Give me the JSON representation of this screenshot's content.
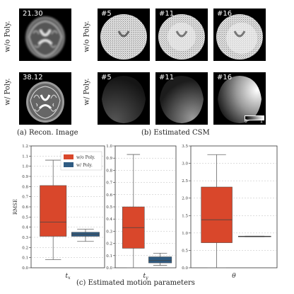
{
  "row_labels": {
    "without": "w/o Poly.",
    "with": "w/ Poly."
  },
  "recon": {
    "without_value": "21.30",
    "with_value": "38.12"
  },
  "csm": {
    "coils": [
      "#5",
      "#11",
      "#16"
    ],
    "colorbar_min": "0",
    "colorbar_max": "1"
  },
  "captions": {
    "a": "(a) Recon. Image",
    "b": "(b) Estimated CSM",
    "c": "(c) Estimated motion parameters"
  },
  "colors": {
    "without_poly": "#d9472b",
    "with_poly": "#2f5b82"
  },
  "chart_data": [
    {
      "type": "box",
      "xlabel": "t_x",
      "ylabel": "RMSE",
      "ylim": [
        0,
        1.2
      ],
      "yticks": [
        "0.0",
        "0.2",
        "0.4",
        "0.6",
        "0.8",
        "1.0",
        "1.2"
      ],
      "legend": {
        "position": "top-right",
        "entries": [
          "w/o Poly.",
          "w/ Poly."
        ]
      },
      "series": [
        {
          "name": "w/o Poly.",
          "min": 0.08,
          "q1": 0.31,
          "median": 0.45,
          "q3": 0.81,
          "max": 1.06
        },
        {
          "name": "w/ Poly.",
          "min": 0.26,
          "q1": 0.31,
          "median": 0.33,
          "q3": 0.35,
          "max": 0.38
        }
      ]
    },
    {
      "type": "box",
      "xlabel": "t_y",
      "ylim": [
        0,
        1.0
      ],
      "series": [
        {
          "name": "w/o Poly.",
          "min": 0.0,
          "q1": 0.16,
          "median": 0.33,
          "q3": 0.5,
          "max": 0.93
        },
        {
          "name": "w/ Poly.",
          "min": 0.02,
          "q1": 0.04,
          "median": 0.06,
          "q3": 0.09,
          "max": 0.12
        }
      ]
    },
    {
      "type": "box",
      "xlabel": "θ",
      "ylim": [
        0,
        3.5
      ],
      "yticks": [
        "0.0",
        "0.5",
        "1.0",
        "1.5",
        "2.0",
        "2.5",
        "3.0",
        "3.5"
      ],
      "series": [
        {
          "name": "w/o Poly.",
          "min": 0.0,
          "q1": 0.72,
          "median": 1.38,
          "q3": 2.32,
          "max": 3.25
        },
        {
          "name": "w/ Poly.",
          "min": 0.89,
          "q1": 0.89,
          "median": 0.9,
          "q3": 0.91,
          "max": 0.91
        }
      ]
    }
  ]
}
